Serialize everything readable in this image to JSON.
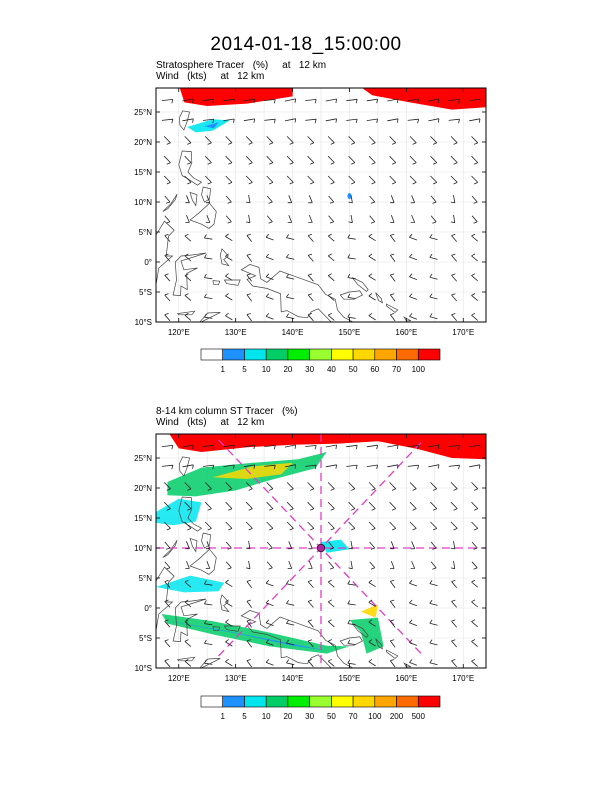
{
  "title": "2014-01-18_15:00:00",
  "panels": [
    {
      "id": "stratosphere",
      "line1": "Stratosphere Tracer   (%)     at   12 km",
      "line2": "Wind   (kts)     at   12 km",
      "colorbar_labels": [
        "1",
        "5",
        "10",
        "20",
        "30",
        "40",
        "50",
        "60",
        "70",
        "100"
      ]
    },
    {
      "id": "column",
      "line1": "8-14 km column ST Tracer   (%)",
      "line2": "Wind   (kts)     at   12 km",
      "colorbar_labels": [
        "1",
        "5",
        "10",
        "20",
        "30",
        "50",
        "70",
        "100",
        "200",
        "500"
      ]
    }
  ],
  "lat_labels": [
    "25°N",
    "20°N",
    "15°N",
    "10°N",
    "5°N",
    "0°",
    "5°S",
    "10°S"
  ],
  "lon_labels": [
    "120°E",
    "130°E",
    "140°E",
    "150°E",
    "160°E",
    "170°E"
  ],
  "colorbar_colors": [
    "#ffffff",
    "#1e90ff",
    "#00e5ee",
    "#00cd66",
    "#00ee00",
    "#9aff2e",
    "#ffff00",
    "#ffd700",
    "#ffa500",
    "#ff6a00",
    "#ff0000"
  ],
  "map_extent": {
    "lon": [
      116,
      174
    ],
    "lat": [
      -10,
      29
    ]
  },
  "storm_center": {
    "lon": 145,
    "lat": 10
  }
}
